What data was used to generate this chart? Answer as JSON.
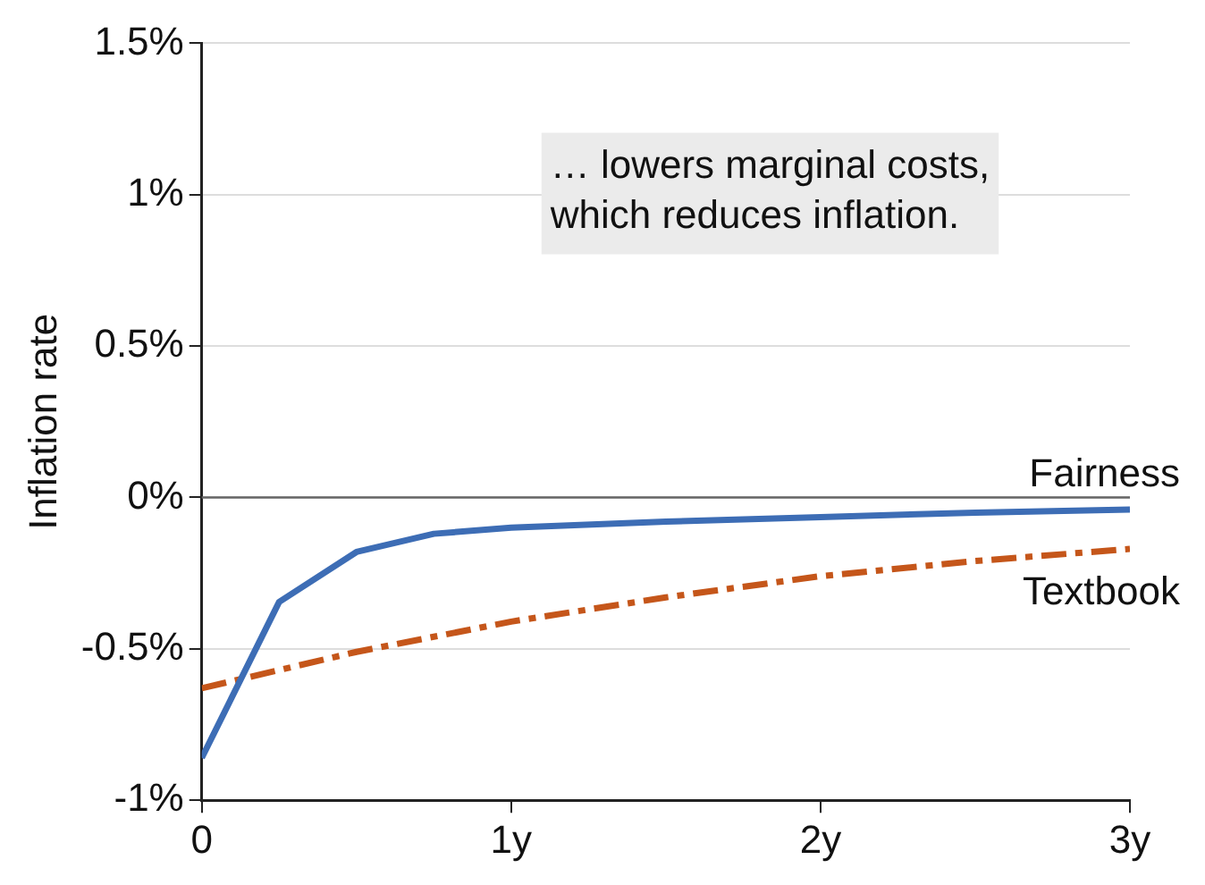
{
  "chart_data": {
    "type": "line",
    "ylabel": "Inflation rate",
    "annotations": [
      "… lowers marginal costs,\nwhich reduces inflation."
    ],
    "series": [
      {
        "name": "Fairness",
        "color": "#3d6db5",
        "line_style": "solid",
        "x": [
          0,
          0.25,
          0.5,
          0.75,
          1,
          1.5,
          2,
          2.5,
          3
        ],
        "values": [
          -0.86,
          -0.345,
          -0.18,
          -0.12,
          -0.1,
          -0.08,
          -0.065,
          -0.05,
          -0.04
        ]
      },
      {
        "name": "Textbook",
        "color": "#c5561a",
        "line_style": "dashed",
        "x": [
          0,
          0.25,
          0.5,
          0.75,
          1,
          1.5,
          2,
          2.5,
          3
        ],
        "values": [
          -0.63,
          -0.57,
          -0.51,
          -0.46,
          -0.41,
          -0.33,
          -0.26,
          -0.21,
          -0.17
        ]
      }
    ],
    "xlim": [
      0,
      3
    ],
    "xticks": [
      0,
      {
        "value": 1,
        "label": "1y"
      },
      {
        "value": 2,
        "label": "2y"
      },
      {
        "value": 3,
        "label": "3y"
      }
    ],
    "ylim": [
      -1,
      1.5
    ],
    "yticks": [
      {
        "value": -1,
        "label": "-1%"
      },
      {
        "value": -0.5,
        "label": "-0.5%"
      },
      {
        "value": 0,
        "label": "0%"
      },
      {
        "value": 0.5,
        "label": "0.5%"
      },
      {
        "value": 1,
        "label": "1%"
      },
      {
        "value": 1.5,
        "label": "1.5%"
      }
    ],
    "grid": "y",
    "legend": false,
    "marker": "none",
    "ref_lines": [
      {
        "axis": "y",
        "value": 0,
        "color": "#666666"
      }
    ]
  }
}
